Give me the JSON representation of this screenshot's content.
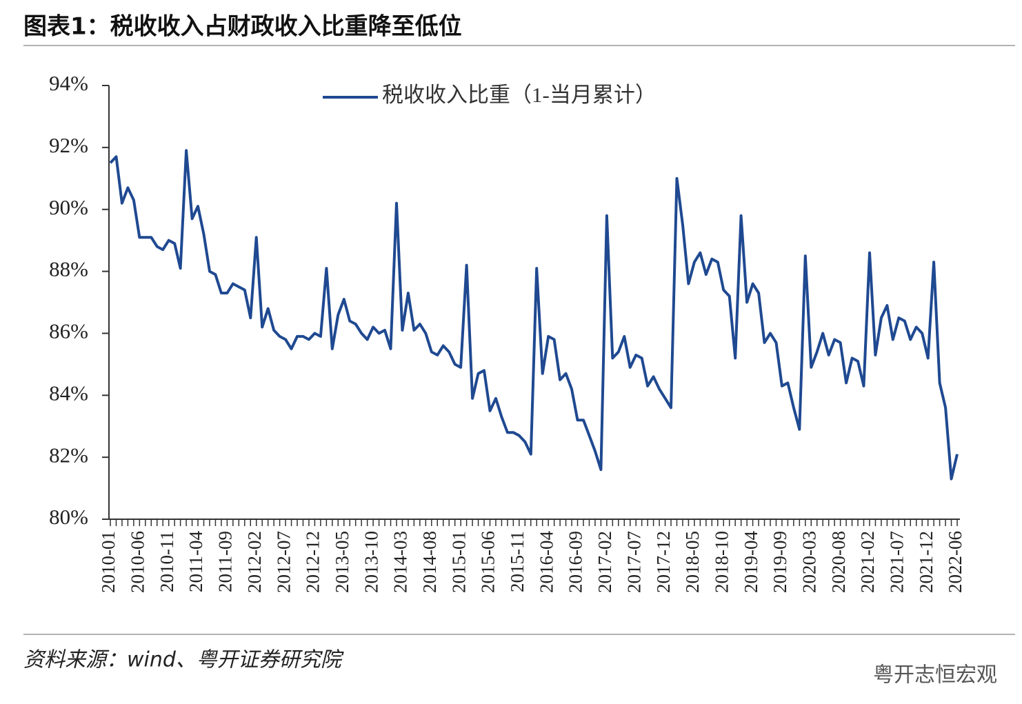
{
  "chart_data": {
    "type": "line",
    "title": "图表1：税收收入占财政收入比重降至低位",
    "source": "资料来源：wind、粤开证券研究院",
    "watermark": "粤开志恒宏观",
    "categories": [
      "2010-01",
      null,
      null,
      null,
      null,
      "2010-06",
      null,
      null,
      null,
      null,
      "2010-11",
      null,
      null,
      null,
      null,
      "2011-04",
      null,
      null,
      null,
      null,
      "2011-09",
      null,
      null,
      null,
      null,
      "2012-02",
      null,
      null,
      null,
      null,
      "2012-07",
      null,
      null,
      null,
      null,
      "2012-12",
      null,
      null,
      null,
      null,
      "2013-05",
      null,
      null,
      null,
      null,
      "2013-10",
      null,
      null,
      null,
      null,
      "2014-03",
      null,
      null,
      null,
      null,
      "2014-08",
      null,
      null,
      null,
      null,
      "2015-01",
      null,
      null,
      null,
      null,
      "2015-06",
      null,
      null,
      null,
      null,
      "2015-11",
      null,
      null,
      null,
      null,
      "2016-04",
      null,
      null,
      null,
      null,
      "2016-09",
      null,
      null,
      null,
      null,
      "2017-02",
      null,
      null,
      null,
      null,
      "2017-07",
      null,
      null,
      null,
      null,
      "2017-12",
      null,
      null,
      null,
      null,
      "2018-05",
      null,
      null,
      null,
      null,
      "2018-10",
      null,
      null,
      null,
      null,
      "2019-04",
      null,
      null,
      null,
      null,
      "2019-09",
      null,
      null,
      null,
      null,
      "2020-03",
      null,
      null,
      null,
      null,
      "2020-08",
      null,
      null,
      null,
      null,
      "2021-02",
      null,
      null,
      null,
      null,
      "2021-07",
      null,
      null,
      null,
      null,
      "2021-12",
      null,
      null,
      null,
      null,
      "2022-06"
    ],
    "series": [
      {
        "name": "税收收入比重（1-当月累计）",
        "color": "#1f4991",
        "values": [
          91.5,
          91.7,
          90.2,
          90.7,
          90.3,
          89.1,
          89.1,
          89.1,
          88.8,
          88.7,
          89.0,
          88.9,
          88.1,
          91.9,
          89.7,
          90.1,
          89.2,
          88.0,
          87.9,
          87.3,
          87.3,
          87.6,
          87.5,
          87.4,
          86.5,
          89.1,
          86.2,
          86.8,
          86.1,
          85.9,
          85.8,
          85.5,
          85.9,
          85.9,
          85.8,
          86.0,
          85.9,
          88.1,
          85.5,
          86.6,
          87.1,
          86.4,
          86.3,
          86.0,
          85.8,
          86.2,
          86.0,
          86.1,
          85.5,
          90.2,
          86.1,
          87.3,
          86.1,
          86.3,
          86.0,
          85.4,
          85.3,
          85.6,
          85.4,
          85.0,
          84.9,
          88.2,
          83.9,
          84.7,
          84.8,
          83.5,
          83.9,
          83.3,
          82.8,
          82.8,
          82.7,
          82.5,
          82.1,
          88.1,
          84.7,
          85.9,
          85.8,
          84.5,
          84.7,
          84.2,
          83.2,
          83.2,
          82.7,
          82.2,
          81.6,
          89.8,
          85.2,
          85.4,
          85.9,
          84.9,
          85.3,
          85.2,
          84.3,
          84.6,
          84.2,
          83.9,
          83.6,
          91.0,
          89.5,
          87.6,
          88.3,
          88.6,
          87.9,
          88.4,
          88.3,
          87.4,
          87.2,
          85.2,
          89.8,
          87.0,
          87.6,
          87.3,
          85.7,
          86.0,
          85.7,
          84.3,
          84.4,
          83.6,
          82.9,
          88.5,
          84.9,
          85.4,
          86.0,
          85.3,
          85.8,
          85.7,
          84.4,
          85.2,
          85.1,
          84.3,
          88.6,
          85.3,
          86.5,
          86.9,
          85.8,
          86.5,
          86.4,
          85.8,
          86.2,
          86.0,
          85.2,
          88.3,
          84.4,
          83.6,
          81.3,
          82.1
        ]
      }
    ],
    "ylim": [
      80,
      94
    ],
    "yticks": [
      {
        "value": 80,
        "label": "80%"
      },
      {
        "value": 82,
        "label": "82%"
      },
      {
        "value": 84,
        "label": "84%"
      },
      {
        "value": 86,
        "label": "86%"
      },
      {
        "value": 88,
        "label": "88%"
      },
      {
        "value": 90,
        "label": "90%"
      },
      {
        "value": 92,
        "label": "92%"
      },
      {
        "value": 94,
        "label": "94%"
      }
    ],
    "legend": "top"
  }
}
